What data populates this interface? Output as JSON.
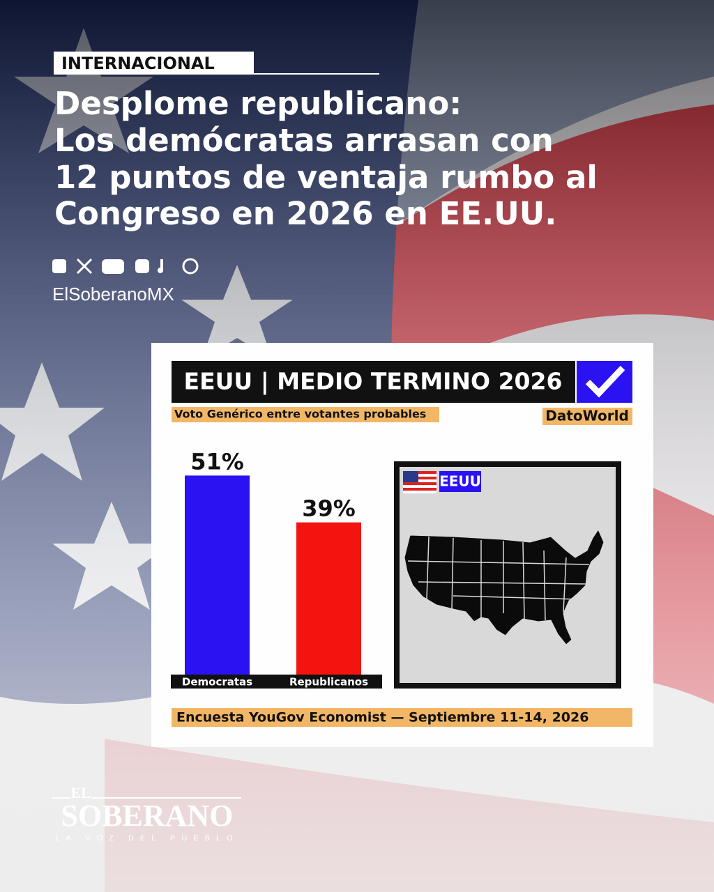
{
  "section": "INTERNACIONAL",
  "headline": [
    "Desplome republicano:",
    "Los demócratas arrasan con",
    "12 puntos de ventaja rumbo al",
    "Congreso en 2026 en EE.UU."
  ],
  "handle": "ElSoberanoMX",
  "chart_data": {
    "type": "bar",
    "title": "EEUU | MEDIO TERMINO 2026",
    "subtitle": "Voto Genérico entre votantes probables",
    "source": "DatoWorld",
    "categories": [
      "Democratas",
      "Republicanos"
    ],
    "values": [
      51,
      39
    ],
    "value_labels": [
      "51%",
      "39%"
    ],
    "colors": [
      "#2a12f2",
      "#f3140e"
    ],
    "map_label": "EEUU",
    "note": "Encuesta YouGov Economist — Septiembre 11-14, 2026"
  },
  "logo": {
    "top": "EL",
    "name": "SOBERANO",
    "tagline": "LA VOZ DEL PUEBLO"
  }
}
